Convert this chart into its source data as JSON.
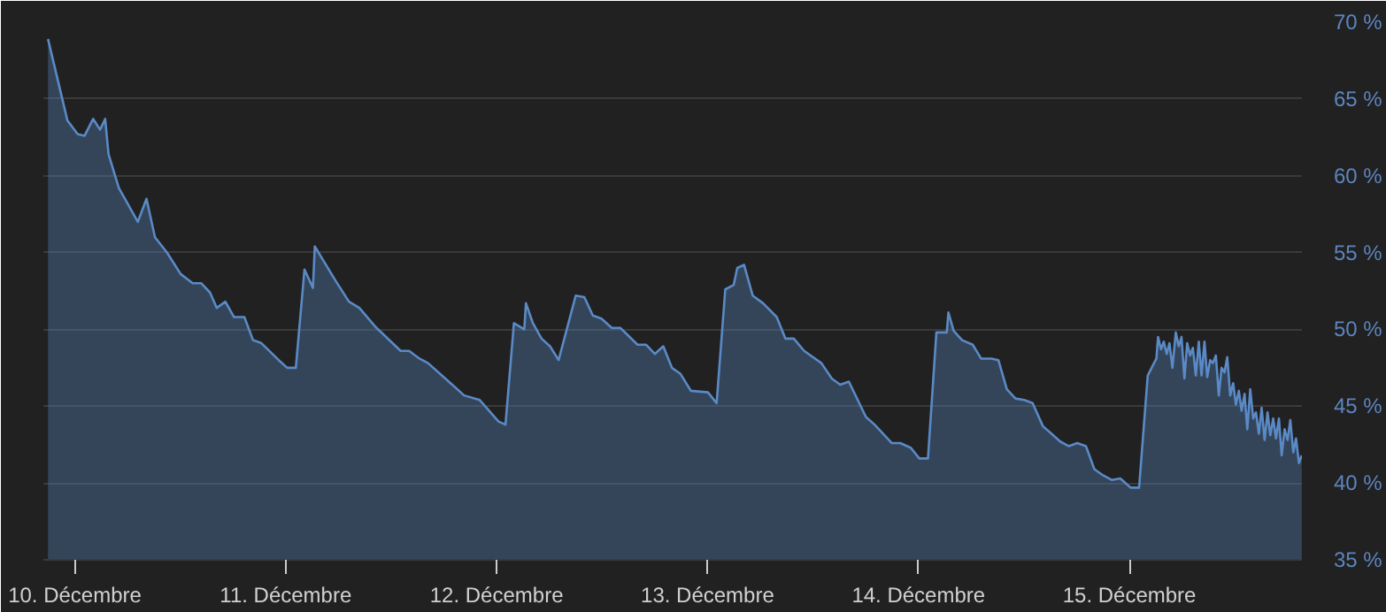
{
  "chart_data": {
    "type": "area",
    "color": "#5a8ac6",
    "x": [
      9.873,
      9.932,
      9.965,
      10.014,
      10.046,
      10.087,
      10.12,
      10.144,
      10.16,
      10.209,
      10.299,
      10.34,
      10.38,
      10.437,
      10.502,
      10.559,
      10.6,
      10.641,
      10.673,
      10.714,
      10.755,
      10.804,
      10.845,
      10.885,
      10.967,
      11.007,
      11.048,
      11.089,
      11.129,
      11.138,
      11.235,
      11.3,
      11.349,
      11.423,
      11.545,
      11.585,
      11.634,
      11.675,
      11.765,
      11.846,
      11.92,
      12.009,
      12.042,
      12.082,
      12.131,
      12.139,
      12.172,
      12.213,
      12.253,
      12.294,
      12.375,
      12.416,
      12.456,
      12.497,
      12.546,
      12.586,
      12.668,
      12.709,
      12.75,
      12.79,
      12.831,
      12.872,
      12.921,
      13.002,
      13.043,
      13.084,
      13.124,
      13.141,
      13.173,
      13.214,
      13.263,
      13.328,
      13.369,
      13.409,
      13.458,
      13.54,
      13.589,
      13.629,
      13.67,
      13.751,
      13.792,
      13.873,
      13.914,
      13.963,
      14.004,
      14.045,
      14.085,
      14.134,
      14.142,
      14.167,
      14.207,
      14.257,
      14.297,
      14.346,
      14.379,
      14.419,
      14.46,
      14.501,
      14.541,
      14.59,
      14.631,
      14.672,
      14.712,
      14.753,
      14.794,
      14.834,
      14.875,
      14.916,
      14.957,
      15.006,
      15.046,
      15.087,
      15.128,
      15.136,
      15.15,
      15.163,
      15.177,
      15.19,
      15.204,
      15.22,
      15.234,
      15.247,
      15.261,
      15.274,
      15.288,
      15.301,
      15.315,
      15.329,
      15.342,
      15.356,
      15.369,
      15.383,
      15.396,
      15.41,
      15.424,
      15.437,
      15.451,
      15.464,
      15.478,
      15.492,
      15.505,
      15.519,
      15.532,
      15.546,
      15.559,
      15.573,
      15.587,
      15.6,
      15.614,
      15.627,
      15.641,
      15.655,
      15.668,
      15.682,
      15.695,
      15.709,
      15.722,
      15.736,
      15.75,
      15.763,
      15.777,
      15.79,
      15.804,
      15.817
    ],
    "values": [
      68.9,
      65.5,
      63.6,
      62.7,
      62.6,
      63.7,
      63.0,
      63.7,
      61.4,
      59.2,
      57.0,
      58.5,
      56.0,
      55.0,
      53.6,
      53.0,
      53.0,
      52.4,
      51.4,
      51.8,
      50.8,
      50.8,
      49.3,
      49.1,
      48.0,
      47.5,
      47.5,
      53.9,
      52.7,
      55.4,
      53.2,
      51.8,
      51.4,
      50.2,
      48.6,
      48.6,
      48.1,
      47.8,
      46.7,
      45.7,
      45.4,
      44.0,
      43.8,
      50.4,
      50.0,
      51.7,
      50.4,
      49.4,
      48.9,
      48.0,
      52.2,
      52.1,
      50.9,
      50.7,
      50.1,
      50.1,
      49.0,
      49.0,
      48.4,
      48.9,
      47.5,
      47.1,
      46.0,
      45.9,
      45.2,
      52.6,
      52.9,
      54.0,
      54.2,
      52.2,
      51.7,
      50.8,
      49.4,
      49.4,
      48.6,
      47.8,
      46.8,
      46.4,
      46.6,
      44.3,
      43.8,
      42.6,
      42.6,
      42.3,
      41.6,
      41.6,
      49.8,
      49.8,
      51.1,
      49.9,
      49.3,
      49.0,
      48.1,
      48.1,
      48.0,
      46.1,
      45.5,
      45.4,
      45.2,
      43.7,
      43.2,
      42.7,
      42.4,
      42.6,
      42.4,
      40.9,
      40.5,
      40.2,
      40.3,
      39.7,
      39.7,
      47.0,
      48.1,
      49.5,
      48.7,
      49.2,
      48.4,
      49.1,
      47.5,
      49.8,
      48.9,
      49.5,
      46.8,
      49.1,
      48.3,
      48.8,
      47.0,
      49.2,
      47.0,
      49.2,
      46.9,
      48.0,
      47.8,
      48.3,
      45.7,
      47.5,
      47.2,
      48.2,
      45.7,
      46.5,
      45.1,
      46.0,
      44.7,
      45.8,
      43.5,
      46.1,
      44.2,
      44.6,
      43.2,
      44.9,
      42.8,
      44.6,
      43.1,
      44.2,
      42.9,
      44.2,
      41.8,
      43.5,
      42.8,
      44.1,
      42.0,
      42.9,
      41.3,
      41.8
    ],
    "xlim": [
      9.851,
      15.818
    ],
    "xticks": [
      {
        "value": 10,
        "label": "10. Décembre"
      },
      {
        "value": 11,
        "label": "11. Décembre"
      },
      {
        "value": 12,
        "label": "12. Décembre"
      },
      {
        "value": 13,
        "label": "13. Décembre"
      },
      {
        "value": 14,
        "label": "14. Décembre"
      },
      {
        "value": 15,
        "label": "15. Décembre"
      }
    ],
    "ylim": [
      35,
      70
    ],
    "yticks": [
      {
        "value": 35,
        "label": "35 %"
      },
      {
        "value": 40,
        "label": "40 %"
      },
      {
        "value": 45,
        "label": "45 %"
      },
      {
        "value": 50,
        "label": "50 %"
      },
      {
        "value": 55,
        "label": "55 %"
      },
      {
        "value": 60,
        "label": "60 %"
      },
      {
        "value": 65,
        "label": "65 %"
      },
      {
        "value": 70,
        "label": "70 %"
      }
    ],
    "grid": "y"
  }
}
